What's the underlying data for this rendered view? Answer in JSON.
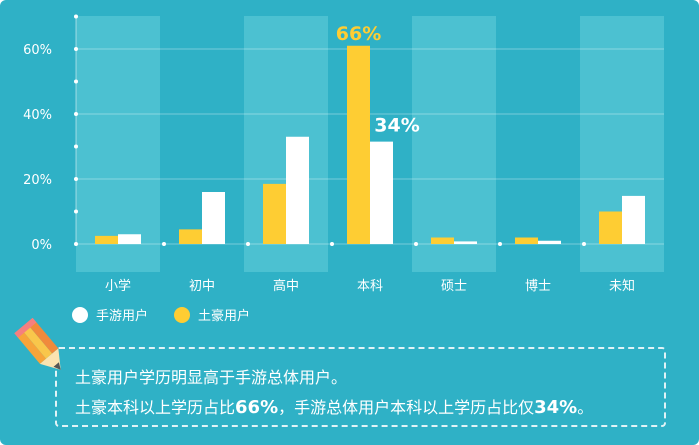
{
  "colors": {
    "background": "#2fb1c6",
    "series_white": "#ffffff",
    "series_yellow": "#fecd33",
    "band": "#4cc1d1"
  },
  "chart_data": {
    "type": "bar",
    "categories": [
      "小学",
      "初中",
      "高中",
      "本科",
      "硕士",
      "博士",
      "未知"
    ],
    "series": [
      {
        "name": "土豪用户",
        "color": "#fecd33",
        "values": [
          2.5,
          4.5,
          18.5,
          61,
          2,
          2,
          10
        ]
      },
      {
        "name": "手游用户",
        "color": "#ffffff",
        "values": [
          3,
          16,
          33,
          31.5,
          0.8,
          1,
          14.8
        ]
      }
    ],
    "yticks": [
      "0%",
      "20%",
      "40%",
      "60%"
    ],
    "ytick_values": [
      0,
      20,
      40,
      60
    ],
    "ylim": [
      0,
      66
    ],
    "annotations": [
      {
        "text": "66%",
        "category": "本科",
        "series": "土豪用户"
      },
      {
        "text": "34%",
        "category": "本科",
        "series": "手游用户"
      }
    ]
  },
  "legend": {
    "white_label": "手游用户",
    "yellow_label": "土豪用户"
  },
  "note": {
    "line1": "土豪用户学历明显高于手游总体用户。",
    "line2_a": "土豪本科以上学历占比",
    "line2_b": "66%",
    "line2_c": "，手游总体用户本科以上学历占比仅",
    "line2_d": "34%",
    "line2_e": "。"
  }
}
